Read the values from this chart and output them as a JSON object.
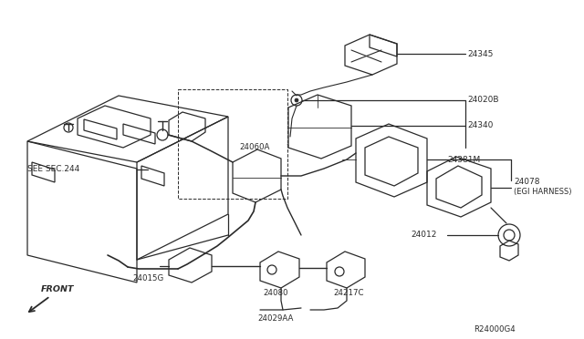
{
  "bg_color": "#ffffff",
  "line_color": "#2a2a2a",
  "text_color": "#2a2a2a",
  "ref_code": "R24000G4",
  "labels": {
    "see_sec": "SEE SEC.244",
    "front": "FRONT",
    "p24345": "24345",
    "p24020b": "24020B",
    "p24340": "24340",
    "p24381m": "24381M",
    "p24078": "24078",
    "egi": "(EGI HARNESS)",
    "p24012": "24012",
    "p24060a": "24060A",
    "p24015g": "24015G",
    "p24080": "24080",
    "p24029aa": "24029AA",
    "p24217c": "24217C"
  },
  "figsize": [
    6.4,
    3.72
  ],
  "dpi": 100
}
